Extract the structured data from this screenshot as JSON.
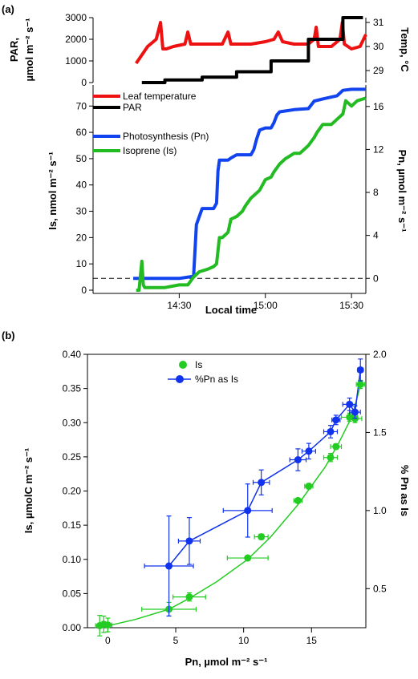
{
  "chart_data": [
    {
      "panel_label": "(a)",
      "type": "line",
      "top_left_axis": {
        "label_line1": "PAR,",
        "label_line2": "µmol m⁻² s⁻¹",
        "ticks": [
          0,
          1000,
          2000,
          3000
        ],
        "ylim": [
          0,
          3000
        ]
      },
      "top_right_axis": {
        "label": "Temp, °C",
        "ticks": [
          29,
          30,
          31
        ],
        "ylim": [
          28.5,
          31.2
        ]
      },
      "bottom_left_axis": {
        "label": "Is, nmol m⁻² s⁻¹",
        "ticks": [
          0,
          10,
          20,
          30,
          40,
          50,
          60,
          70
        ],
        "ylim": [
          0,
          78
        ]
      },
      "bottom_right_axis": {
        "label": "Pn, µmol m⁻² s⁻¹",
        "ticks": [
          0,
          4,
          8,
          12,
          16
        ],
        "ylim": [
          -1.1,
          18
        ]
      },
      "x_axis": {
        "label": "Local time",
        "tick_labels": [
          "14:30",
          "15:00",
          "15:30"
        ],
        "tick_minutes": [
          30,
          60,
          90
        ],
        "xlim": [
          0,
          95
        ]
      },
      "legend": [
        "Leaf temperature",
        "PAR",
        "Photosynthesis (Pn)",
        "Isoprene (Is)"
      ],
      "colors": {
        "temp": "#ee1111",
        "par": "#000000",
        "pn": "#1144ee",
        "is": "#22bb22"
      },
      "series": [
        {
          "name": "Leaf temperature",
          "axis": "temp",
          "x": [
            15,
            19,
            22,
            23.5,
            24.3,
            25.5,
            28,
            32,
            33,
            34,
            36,
            40,
            45,
            47,
            48,
            50,
            55,
            60,
            63,
            64.5,
            66,
            70,
            75,
            77,
            77.7,
            78.5,
            80,
            83,
            86,
            86.8,
            87.5,
            90,
            93,
            95
          ],
          "y": [
            29.3,
            30.0,
            30.3,
            31.0,
            29.9,
            29.9,
            30.0,
            30.1,
            30.6,
            30.1,
            30.1,
            30.1,
            30.1,
            30.6,
            30.1,
            30.1,
            30.1,
            30.2,
            30.3,
            30.6,
            30.2,
            30.1,
            30.1,
            30.3,
            30.8,
            30.0,
            30.0,
            30.0,
            30.3,
            31.0,
            30.1,
            29.9,
            30.0,
            30.5
          ]
        },
        {
          "name": "PAR",
          "axis": "par",
          "x": [
            17,
            25,
            25,
            38,
            38,
            50,
            50,
            62,
            62,
            75,
            75,
            87,
            87,
            94
          ],
          "y": [
            0,
            0,
            120,
            120,
            250,
            250,
            500,
            500,
            1000,
            1000,
            2000,
            2000,
            3000,
            3000
          ]
        },
        {
          "name": "Photosynthesis (Pn)",
          "axis": "pn",
          "x": [
            14,
            18,
            20,
            30,
            35,
            36,
            38,
            40,
            42,
            43,
            43.5,
            44,
            45,
            47,
            48,
            50,
            55,
            56,
            57,
            58,
            60,
            62,
            63,
            64,
            65,
            70,
            75,
            77,
            80,
            85,
            87,
            90,
            95
          ],
          "y": [
            0,
            0,
            0,
            0,
            0.2,
            5,
            6.5,
            6.5,
            6.5,
            7,
            10,
            11,
            11,
            11,
            11.2,
            11.5,
            11.5,
            12,
            13,
            13.8,
            14,
            14,
            14.5,
            15.2,
            15.5,
            15.7,
            15.8,
            16.5,
            16.7,
            17,
            17.5,
            17.6,
            17.6
          ]
        },
        {
          "name": "Isoprene (Is)",
          "axis": "is",
          "x": [
            15,
            16,
            17,
            17.5,
            18,
            20,
            25,
            30,
            33,
            35,
            37,
            40,
            42,
            43,
            44,
            45,
            47,
            48,
            50,
            52,
            53,
            55,
            57,
            58,
            60,
            62,
            63,
            65,
            67,
            70,
            72,
            75,
            77,
            78,
            80,
            83,
            85,
            87,
            88,
            90,
            92,
            95
          ],
          "y": [
            0,
            0,
            11,
            2,
            1,
            1,
            1,
            2,
            2,
            5,
            7,
            8,
            9,
            10,
            20,
            20,
            22,
            27,
            28,
            30,
            32,
            35,
            37,
            38,
            42,
            43,
            45,
            48,
            50,
            52,
            52,
            55,
            58,
            60,
            63,
            63,
            65,
            67,
            72,
            70,
            72,
            73
          ]
        }
      ],
      "reference_line": {
        "axis": "pn",
        "y": 0,
        "style": "dashed"
      }
    },
    {
      "panel_label": "(b)",
      "type": "scatter",
      "x_axis": {
        "label": "Pn, µmol m⁻² s⁻¹",
        "ticks": [
          0,
          5,
          10,
          15
        ],
        "xlim": [
          -1.5,
          19
        ]
      },
      "left_axis": {
        "label": "Is, µmolC m⁻² s⁻¹",
        "ticks": [
          "0.00",
          "0.05",
          "0.10",
          "0.15",
          "0.20",
          "0.25",
          "0.30",
          "0.35",
          "0.40"
        ],
        "ylim": [
          0,
          0.4
        ]
      },
      "right_axis": {
        "label": "% Pn as Is",
        "ticks": [
          "0.5",
          "1.0",
          "1.5",
          "2.0"
        ],
        "ylim": [
          0.25,
          2.0
        ]
      },
      "legend": [
        "Is",
        "%Pn as Is"
      ],
      "colors": {
        "is": "#22cc22",
        "pct": "#1133ee"
      },
      "series": [
        {
          "name": "Is",
          "axis": "left",
          "points": [
            {
              "x": -0.6,
              "y": 0.003,
              "xerr": 0.3,
              "yerr": 0.015
            },
            {
              "x": -0.3,
              "y": 0.005,
              "xerr": 0.3,
              "yerr": 0.012
            },
            {
              "x": 0.0,
              "y": 0.004,
              "xerr": 0.3,
              "yerr": 0.01
            },
            {
              "x": 4.5,
              "y": 0.027,
              "xerr": 2.0,
              "yerr": 0.01
            },
            {
              "x": 6.0,
              "y": 0.045,
              "xerr": 1.2,
              "yerr": 0.006
            },
            {
              "x": 10.3,
              "y": 0.102,
              "xerr": 1.5,
              "yerr": 0.003
            },
            {
              "x": 11.3,
              "y": 0.133,
              "xerr": 0.5,
              "yerr": 0.004
            },
            {
              "x": 14.0,
              "y": 0.186,
              "xerr": 0.3,
              "yerr": 0.003
            },
            {
              "x": 14.8,
              "y": 0.207,
              "xerr": 0.3,
              "yerr": 0.004
            },
            {
              "x": 16.4,
              "y": 0.249,
              "xerr": 0.5,
              "yerr": 0.006
            },
            {
              "x": 16.8,
              "y": 0.265,
              "xerr": 0.4,
              "yerr": 0.004
            },
            {
              "x": 17.8,
              "y": 0.308,
              "xerr": 0.6,
              "yerr": 0.006
            },
            {
              "x": 18.2,
              "y": 0.306,
              "xerr": 0.5,
              "yerr": 0.006
            },
            {
              "x": 18.6,
              "y": 0.356,
              "xerr": 0.3,
              "yerr": 0.006
            }
          ],
          "fit": {
            "x": [
              -0.6,
              2,
              4.5,
              6,
              8,
              10.3,
              12,
              14,
              16,
              17,
              18,
              18.6
            ],
            "y": [
              0.0,
              0.012,
              0.027,
              0.043,
              0.067,
              0.1,
              0.133,
              0.18,
              0.235,
              0.27,
              0.31,
              0.355
            ]
          }
        },
        {
          "name": "%Pn as Is",
          "axis": "right",
          "points": [
            {
              "x": 4.5,
              "y": 0.645,
              "xerr": 1.8,
              "yerr": 0.32
            },
            {
              "x": 6.0,
              "y": 0.805,
              "xerr": 0.8,
              "yerr": 0.15
            },
            {
              "x": 10.3,
              "y": 1.0,
              "xerr": 1.8,
              "yerr": 0.17
            },
            {
              "x": 11.3,
              "y": 1.18,
              "xerr": 0.6,
              "yerr": 0.08
            },
            {
              "x": 14.0,
              "y": 1.325,
              "xerr": 0.6,
              "yerr": 0.07
            },
            {
              "x": 14.8,
              "y": 1.38,
              "xerr": 0.5,
              "yerr": 0.05
            },
            {
              "x": 16.4,
              "y": 1.505,
              "xerr": 0.5,
              "yerr": 0.04
            },
            {
              "x": 16.8,
              "y": 1.58,
              "xerr": 0.3,
              "yerr": 0.03
            },
            {
              "x": 17.8,
              "y": 1.68,
              "xerr": 0.5,
              "yerr": 0.04
            },
            {
              "x": 18.2,
              "y": 1.63,
              "xerr": 0.4,
              "yerr": 0.04
            },
            {
              "x": 18.6,
              "y": 1.9,
              "xerr": 0.2,
              "yerr": 0.07
            }
          ]
        }
      ]
    }
  ]
}
